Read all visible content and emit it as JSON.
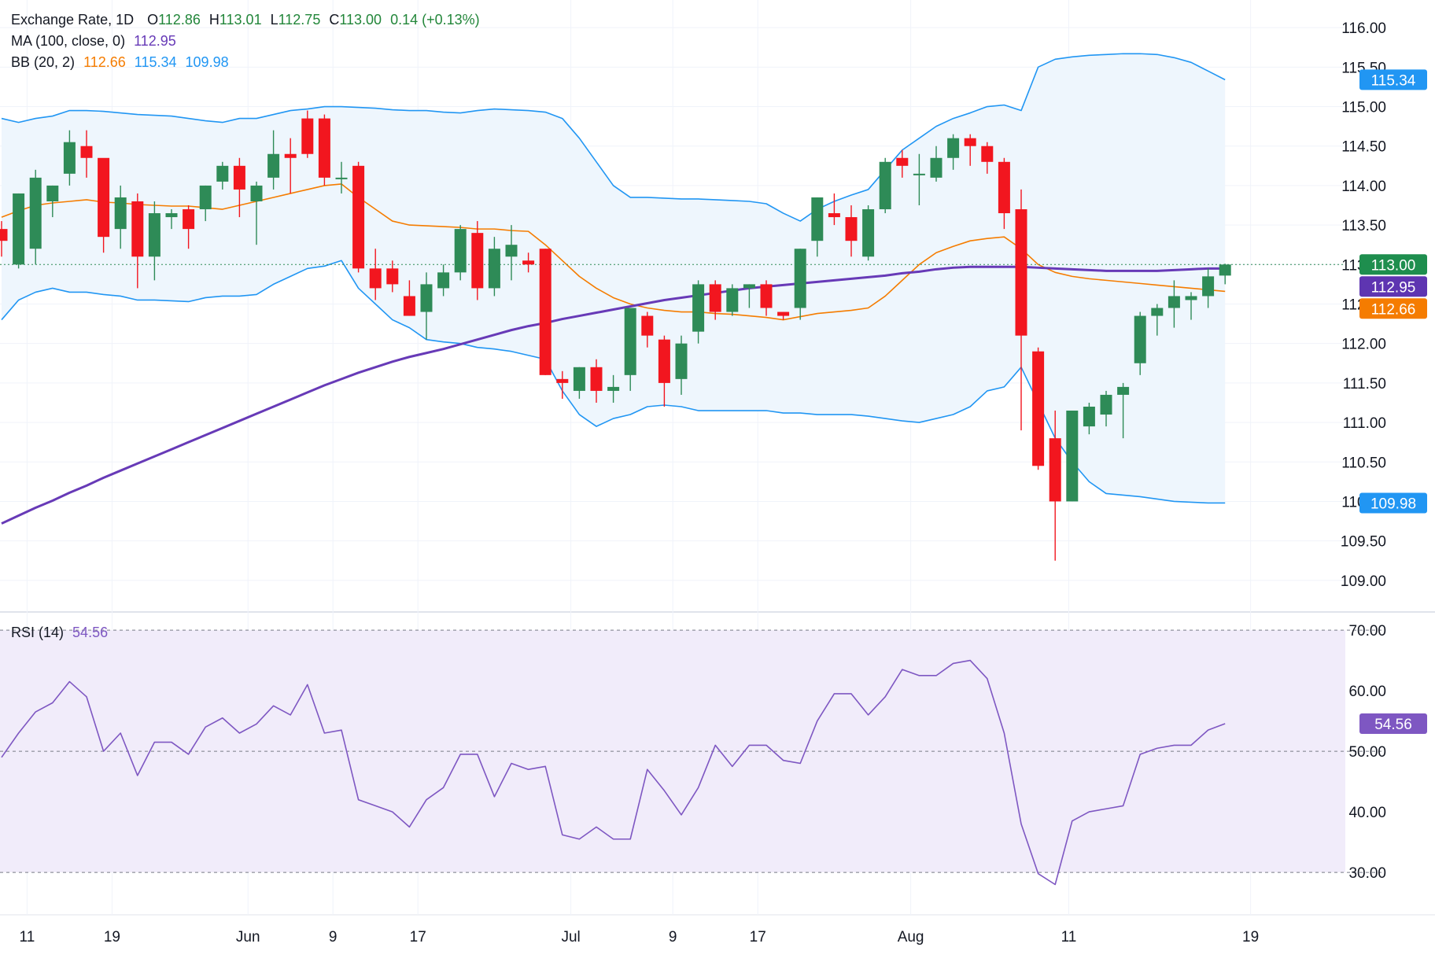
{
  "legend": {
    "title": "Exchange Rate, 1D",
    "o_label": "O",
    "o_value": "112.86",
    "h_label": "H",
    "h_value": "113.01",
    "l_label": "L",
    "l_value": "112.75",
    "c_label": "C",
    "c_value": "113.00",
    "change": "0.14 (+0.13%)",
    "ma_label": "MA (100, close, 0)",
    "ma_value": "112.95",
    "bb_label": "BB (20, 2)",
    "bb_basis": "112.66",
    "bb_upper": "115.34",
    "bb_lower": "109.98",
    "rsi_label": "RSI (14)",
    "rsi_value": "54.56"
  },
  "colors": {
    "up": "#2e8b57",
    "down": "#f2161f",
    "ma": "#673ab7",
    "bb_basis": "#f57c00",
    "bb_band": "#2196f3",
    "bb_fill": "#eef6fd",
    "rsi": "#7e57c2",
    "rsi_fill": "#f1ecfa",
    "legend_green": "#22863a",
    "price_tag": "#1e8e4e",
    "ma_tag": "#5e35b1",
    "bb_basis_tag": "#f57c00",
    "bb_band_tag": "#2196f3"
  },
  "chart_data": [
    {
      "type": "candlestick",
      "title": "Exchange Rate, 1D",
      "x_tick_labels": [
        "11",
        "19",
        "Jun",
        "9",
        "17",
        "Jul",
        "9",
        "17",
        "Aug",
        "11",
        "19"
      ],
      "y_ticks": [
        109.0,
        109.5,
        110.0,
        110.5,
        111.0,
        111.5,
        112.0,
        112.5,
        113.0,
        113.5,
        114.0,
        114.5,
        115.0,
        115.5,
        116.0
      ],
      "ylim": [
        108.6,
        116.35
      ],
      "current_price": 113.0,
      "price_labels": [
        "113.00",
        "112.95",
        "112.66",
        "115.34",
        "109.98"
      ],
      "candles": [
        [
          113.45,
          113.55,
          113.1,
          113.3
        ],
        [
          113.0,
          113.9,
          112.95,
          113.9
        ],
        [
          113.2,
          114.2,
          113.0,
          114.1
        ],
        [
          113.8,
          114.0,
          113.6,
          114.0
        ],
        [
          114.15,
          114.7,
          114.0,
          114.55
        ],
        [
          114.5,
          114.7,
          114.1,
          114.35
        ],
        [
          114.35,
          114.3,
          113.15,
          113.35
        ],
        [
          113.45,
          114.0,
          113.2,
          113.85
        ],
        [
          113.8,
          113.9,
          112.7,
          113.1
        ],
        [
          113.1,
          113.8,
          112.8,
          113.65
        ],
        [
          113.6,
          113.7,
          113.45,
          113.65
        ],
        [
          113.7,
          113.75,
          113.2,
          113.45
        ],
        [
          113.7,
          114.0,
          113.55,
          114.0
        ],
        [
          114.05,
          114.3,
          113.95,
          114.25
        ],
        [
          114.25,
          114.35,
          113.6,
          113.95
        ],
        [
          113.8,
          114.05,
          113.25,
          114.0
        ],
        [
          114.1,
          114.7,
          113.95,
          114.4
        ],
        [
          114.4,
          114.6,
          113.9,
          114.35
        ],
        [
          114.85,
          114.95,
          114.35,
          114.4
        ],
        [
          114.85,
          114.9,
          114.0,
          114.1
        ],
        [
          114.1,
          114.3,
          113.9,
          114.1
        ],
        [
          114.25,
          114.3,
          112.9,
          112.95
        ],
        [
          112.95,
          113.2,
          112.55,
          112.7
        ],
        [
          112.95,
          113.05,
          112.65,
          112.75
        ],
        [
          112.6,
          112.8,
          112.35,
          112.35
        ],
        [
          112.4,
          112.9,
          112.05,
          112.75
        ],
        [
          112.7,
          113.0,
          112.6,
          112.9
        ],
        [
          112.9,
          113.5,
          112.8,
          113.45
        ],
        [
          113.4,
          113.55,
          112.55,
          112.7
        ],
        [
          112.7,
          113.35,
          112.6,
          113.2
        ],
        [
          113.1,
          113.5,
          112.8,
          113.25
        ],
        [
          113.05,
          113.15,
          112.9,
          113.0
        ],
        [
          113.2,
          113.2,
          111.6,
          111.6
        ],
        [
          111.55,
          111.65,
          111.3,
          111.5
        ],
        [
          111.4,
          111.7,
          111.3,
          111.7
        ],
        [
          111.7,
          111.8,
          111.25,
          111.4
        ],
        [
          111.4,
          111.6,
          111.25,
          111.45
        ],
        [
          111.6,
          112.45,
          111.4,
          112.45
        ],
        [
          112.35,
          112.4,
          111.95,
          112.1
        ],
        [
          112.05,
          112.1,
          111.2,
          111.5
        ],
        [
          111.55,
          112.1,
          111.35,
          112.0
        ],
        [
          112.15,
          112.8,
          112.0,
          112.75
        ],
        [
          112.75,
          112.8,
          112.3,
          112.4
        ],
        [
          112.4,
          112.75,
          112.35,
          112.7
        ],
        [
          112.7,
          112.75,
          112.45,
          112.75
        ],
        [
          112.75,
          112.8,
          112.35,
          112.45
        ],
        [
          112.4,
          112.4,
          112.3,
          112.35
        ],
        [
          112.45,
          113.2,
          112.3,
          113.2
        ],
        [
          113.3,
          113.85,
          113.1,
          113.85
        ],
        [
          113.65,
          113.9,
          113.5,
          113.6
        ],
        [
          113.6,
          113.75,
          113.1,
          113.3
        ],
        [
          113.1,
          113.75,
          113.05,
          113.7
        ],
        [
          113.7,
          114.35,
          113.65,
          114.3
        ],
        [
          114.35,
          114.45,
          114.1,
          114.25
        ],
        [
          114.15,
          114.4,
          113.75,
          114.15
        ],
        [
          114.1,
          114.5,
          114.05,
          114.35
        ],
        [
          114.35,
          114.65,
          114.2,
          114.6
        ],
        [
          114.6,
          114.65,
          114.25,
          114.5
        ],
        [
          114.5,
          114.55,
          114.15,
          114.3
        ],
        [
          114.3,
          114.35,
          113.45,
          113.65
        ],
        [
          113.7,
          113.95,
          110.9,
          112.1
        ],
        [
          111.9,
          111.95,
          110.4,
          110.45
        ],
        [
          110.8,
          111.15,
          109.25,
          110.0
        ],
        [
          110.0,
          111.15,
          110.0,
          111.15
        ],
        [
          110.95,
          111.25,
          110.85,
          111.2
        ],
        [
          111.1,
          111.4,
          110.95,
          111.35
        ],
        [
          111.35,
          111.5,
          110.8,
          111.45
        ],
        [
          111.75,
          112.4,
          111.6,
          112.35
        ],
        [
          112.35,
          112.5,
          112.1,
          112.45
        ],
        [
          112.45,
          112.8,
          112.2,
          112.6
        ],
        [
          112.55,
          112.65,
          112.3,
          112.6
        ],
        [
          112.6,
          112.95,
          112.45,
          112.85
        ],
        [
          112.86,
          113.01,
          112.75,
          113.0
        ]
      ],
      "ma100": [
        109.72,
        109.82,
        109.92,
        110.01,
        110.11,
        110.2,
        110.3,
        110.39,
        110.48,
        110.57,
        110.66,
        110.75,
        110.84,
        110.93,
        111.02,
        111.11,
        111.2,
        111.29,
        111.38,
        111.47,
        111.55,
        111.63,
        111.7,
        111.77,
        111.83,
        111.88,
        111.93,
        111.99,
        112.05,
        112.11,
        112.17,
        112.22,
        112.26,
        112.31,
        112.35,
        112.39,
        112.43,
        112.47,
        112.51,
        112.55,
        112.58,
        112.61,
        112.64,
        112.67,
        112.7,
        112.72,
        112.74,
        112.76,
        112.78,
        112.8,
        112.82,
        112.84,
        112.86,
        112.89,
        112.91,
        112.94,
        112.96,
        112.97,
        112.97,
        112.97,
        112.97,
        112.96,
        112.95,
        112.94,
        112.93,
        112.92,
        112.92,
        112.92,
        112.92,
        112.93,
        112.94,
        112.95,
        112.95
      ],
      "bb_basis": [
        113.6,
        113.68,
        113.75,
        113.78,
        113.8,
        113.82,
        113.79,
        113.78,
        113.76,
        113.75,
        113.74,
        113.74,
        113.72,
        113.7,
        113.75,
        113.8,
        113.85,
        113.9,
        113.95,
        114.0,
        114.02,
        113.85,
        113.7,
        113.55,
        113.5,
        113.49,
        113.48,
        113.47,
        113.45,
        113.45,
        113.43,
        113.42,
        113.25,
        113.05,
        112.85,
        112.7,
        112.58,
        112.5,
        112.45,
        112.42,
        112.4,
        112.4,
        112.38,
        112.37,
        112.35,
        112.33,
        112.3,
        112.34,
        112.38,
        112.4,
        112.42,
        112.45,
        112.6,
        112.8,
        113.0,
        113.15,
        113.23,
        113.3,
        113.33,
        113.35,
        113.2,
        113.0,
        112.9,
        112.85,
        112.82,
        112.8,
        112.78,
        112.76,
        112.74,
        112.72,
        112.7,
        112.68,
        112.66
      ],
      "bb_upper": [
        114.85,
        114.8,
        114.85,
        114.88,
        114.95,
        114.95,
        114.94,
        114.92,
        114.9,
        114.89,
        114.88,
        114.85,
        114.82,
        114.8,
        114.85,
        114.85,
        114.9,
        114.95,
        114.97,
        115.0,
        115.0,
        114.99,
        114.98,
        114.96,
        114.95,
        114.95,
        114.93,
        114.92,
        114.95,
        114.97,
        114.96,
        114.95,
        114.93,
        114.85,
        114.6,
        114.3,
        114.0,
        113.85,
        113.85,
        113.84,
        113.83,
        113.83,
        113.82,
        113.81,
        113.8,
        113.77,
        113.65,
        113.55,
        113.7,
        113.8,
        113.88,
        113.95,
        114.2,
        114.45,
        114.6,
        114.75,
        114.85,
        114.92,
        115.0,
        115.02,
        114.95,
        115.5,
        115.6,
        115.63,
        115.65,
        115.66,
        115.67,
        115.67,
        115.66,
        115.62,
        115.56,
        115.45,
        115.34
      ],
      "bb_lower": [
        112.3,
        112.55,
        112.65,
        112.7,
        112.65,
        112.65,
        112.62,
        112.6,
        112.55,
        112.55,
        112.54,
        112.53,
        112.58,
        112.6,
        112.6,
        112.62,
        112.75,
        112.85,
        112.95,
        112.98,
        113.05,
        112.7,
        112.5,
        112.3,
        112.2,
        112.05,
        112.02,
        112.0,
        111.95,
        111.93,
        111.9,
        111.85,
        111.8,
        111.4,
        111.1,
        110.95,
        111.05,
        111.1,
        111.2,
        111.22,
        111.2,
        111.15,
        111.15,
        111.15,
        111.15,
        111.15,
        111.12,
        111.12,
        111.1,
        111.1,
        111.1,
        111.08,
        111.05,
        111.02,
        111.0,
        111.05,
        111.1,
        111.2,
        111.4,
        111.45,
        111.7,
        111.25,
        110.8,
        110.5,
        110.25,
        110.1,
        110.08,
        110.06,
        110.03,
        110.0,
        109.99,
        109.98,
        109.98
      ]
    },
    {
      "type": "line",
      "title": "RSI (14)",
      "y_ticks": [
        30.0,
        40.0,
        50.0,
        60.0,
        70.0
      ],
      "ylim": [
        23.0,
        73.0
      ],
      "band": [
        30,
        70
      ],
      "midline": 50,
      "current_value_label": "54.56",
      "values": [
        49,
        53,
        56.5,
        58,
        61.5,
        59,
        50,
        53,
        46,
        51.5,
        51.5,
        49.5,
        54,
        55.5,
        53,
        54.5,
        57.5,
        56,
        61,
        53,
        53.5,
        42,
        41,
        40,
        37.5,
        42,
        44,
        49.5,
        49.5,
        42.5,
        48,
        47,
        47.5,
        36.2,
        35.5,
        37.5,
        35.5,
        35.5,
        47,
        43.5,
        39.5,
        44,
        51,
        47.5,
        51,
        51,
        48.5,
        48,
        55,
        59.5,
        59.5,
        56,
        59,
        63.5,
        62.5,
        62.5,
        64.5,
        65,
        62,
        53,
        38,
        29.8,
        28,
        38.5,
        40,
        40.5,
        41,
        49.5,
        50.5,
        51,
        51,
        53.5,
        54.56
      ]
    }
  ]
}
